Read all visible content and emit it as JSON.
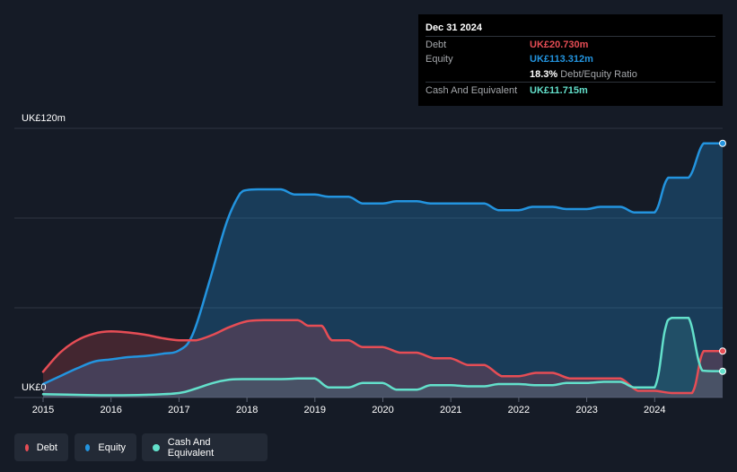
{
  "tooltip": {
    "date": "Dec 31 2024",
    "debt_label": "Debt",
    "debt_value": "UK£20.730m",
    "equity_label": "Equity",
    "equity_value": "UK£113.312m",
    "ratio_value": "18.3%",
    "ratio_label": "Debt/Equity Ratio",
    "cash_label": "Cash And Equivalent",
    "cash_value": "UK£11.715m"
  },
  "legend": {
    "debt": "Debt",
    "equity": "Equity",
    "cash": "Cash And Equivalent"
  },
  "colors": {
    "debt": "#e64d55",
    "equity": "#2394df",
    "cash": "#63e0cb",
    "background": "#151b26",
    "grid": "#2e3542"
  },
  "chart_data": {
    "type": "area",
    "y_top_label": "UK£120m",
    "y_bottom_label": "UK£0",
    "ylim": [
      0,
      120
    ],
    "xlim": [
      2015.0,
      2025.0
    ],
    "x_ticks": [
      2015,
      2016,
      2017,
      2018,
      2019,
      2020,
      2021,
      2022,
      2023,
      2024
    ],
    "x_tick_labels": [
      "2015",
      "2016",
      "2017",
      "2018",
      "2019",
      "2020",
      "2021",
      "2022",
      "2023",
      "2024"
    ],
    "series": [
      {
        "name": "Debt",
        "key": "debt",
        "points": [
          [
            2015.0,
            11.5
          ],
          [
            2015.25,
            20
          ],
          [
            2015.5,
            25.5
          ],
          [
            2015.75,
            28.5
          ],
          [
            2016.0,
            29.5
          ],
          [
            2016.25,
            29
          ],
          [
            2016.5,
            28
          ],
          [
            2016.75,
            26.5
          ],
          [
            2017.0,
            25.5
          ],
          [
            2017.25,
            25.5
          ],
          [
            2017.5,
            28
          ],
          [
            2017.75,
            31.5
          ],
          [
            2018.0,
            34
          ],
          [
            2018.25,
            34.5
          ],
          [
            2018.5,
            34.5
          ],
          [
            2018.75,
            34.5
          ],
          [
            2018.9,
            32
          ],
          [
            2019.1,
            32
          ],
          [
            2019.25,
            25.5
          ],
          [
            2019.5,
            25.5
          ],
          [
            2019.7,
            22.5
          ],
          [
            2020.0,
            22.5
          ],
          [
            2020.25,
            20
          ],
          [
            2020.5,
            20
          ],
          [
            2020.75,
            17.5
          ],
          [
            2021.0,
            17.5
          ],
          [
            2021.25,
            14.5
          ],
          [
            2021.5,
            14.5
          ],
          [
            2021.75,
            9.5
          ],
          [
            2022.0,
            9.5
          ],
          [
            2022.25,
            11
          ],
          [
            2022.5,
            11
          ],
          [
            2022.75,
            8.5
          ],
          [
            2023.0,
            8.5
          ],
          [
            2023.25,
            8.5
          ],
          [
            2023.5,
            8.5
          ],
          [
            2023.75,
            3
          ],
          [
            2024.0,
            3
          ],
          [
            2024.25,
            2
          ],
          [
            2024.55,
            2
          ],
          [
            2024.72,
            20.7
          ],
          [
            2025.0,
            20.7
          ]
        ]
      },
      {
        "name": "Equity",
        "key": "equity",
        "points": [
          [
            2015.0,
            6
          ],
          [
            2015.25,
            9.5
          ],
          [
            2015.5,
            13
          ],
          [
            2015.75,
            16
          ],
          [
            2016.0,
            17
          ],
          [
            2016.25,
            18
          ],
          [
            2016.5,
            18.5
          ],
          [
            2016.75,
            19.5
          ],
          [
            2017.0,
            21
          ],
          [
            2017.2,
            28
          ],
          [
            2017.45,
            52
          ],
          [
            2017.7,
            78
          ],
          [
            2017.9,
            91
          ],
          [
            2018.0,
            92.5
          ],
          [
            2018.2,
            92.8
          ],
          [
            2018.5,
            92.8
          ],
          [
            2018.7,
            90.5
          ],
          [
            2019.0,
            90.5
          ],
          [
            2019.2,
            89.5
          ],
          [
            2019.5,
            89.5
          ],
          [
            2019.7,
            86.5
          ],
          [
            2020.0,
            86.5
          ],
          [
            2020.2,
            87.5
          ],
          [
            2020.5,
            87.5
          ],
          [
            2020.7,
            86.5
          ],
          [
            2021.0,
            86.5
          ],
          [
            2021.25,
            86.5
          ],
          [
            2021.5,
            86.5
          ],
          [
            2021.7,
            83.5
          ],
          [
            2022.0,
            83.5
          ],
          [
            2022.2,
            85
          ],
          [
            2022.5,
            85
          ],
          [
            2022.7,
            84
          ],
          [
            2023.0,
            84
          ],
          [
            2023.2,
            85
          ],
          [
            2023.5,
            85
          ],
          [
            2023.7,
            82.5
          ],
          [
            2024.0,
            82.5
          ],
          [
            2024.2,
            98
          ],
          [
            2024.5,
            98
          ],
          [
            2024.72,
            113.3
          ],
          [
            2025.0,
            113.3
          ]
        ]
      },
      {
        "name": "Cash And Equivalent",
        "key": "cash",
        "points": [
          [
            2015.0,
            1.5
          ],
          [
            2015.5,
            1.2
          ],
          [
            2016.0,
            1
          ],
          [
            2016.5,
            1.2
          ],
          [
            2017.0,
            2
          ],
          [
            2017.25,
            4
          ],
          [
            2017.5,
            6.5
          ],
          [
            2017.75,
            8
          ],
          [
            2018.0,
            8.2
          ],
          [
            2018.5,
            8.2
          ],
          [
            2018.75,
            8.5
          ],
          [
            2019.0,
            8.5
          ],
          [
            2019.2,
            4.5
          ],
          [
            2019.5,
            4.5
          ],
          [
            2019.7,
            6.5
          ],
          [
            2020.0,
            6.5
          ],
          [
            2020.2,
            3.5
          ],
          [
            2020.5,
            3.5
          ],
          [
            2020.7,
            5.5
          ],
          [
            2021.0,
            5.5
          ],
          [
            2021.25,
            5
          ],
          [
            2021.5,
            5
          ],
          [
            2021.7,
            6
          ],
          [
            2022.0,
            6
          ],
          [
            2022.25,
            5.5
          ],
          [
            2022.5,
            5.5
          ],
          [
            2022.7,
            6.5
          ],
          [
            2023.0,
            6.5
          ],
          [
            2023.25,
            7
          ],
          [
            2023.5,
            7
          ],
          [
            2023.7,
            4.5
          ],
          [
            2024.0,
            4.5
          ],
          [
            2024.15,
            30
          ],
          [
            2024.25,
            35.5
          ],
          [
            2024.5,
            35.5
          ],
          [
            2024.7,
            12
          ],
          [
            2025.0,
            11.7
          ]
        ]
      }
    ],
    "legend_position": "bottom-left",
    "grid": true
  }
}
